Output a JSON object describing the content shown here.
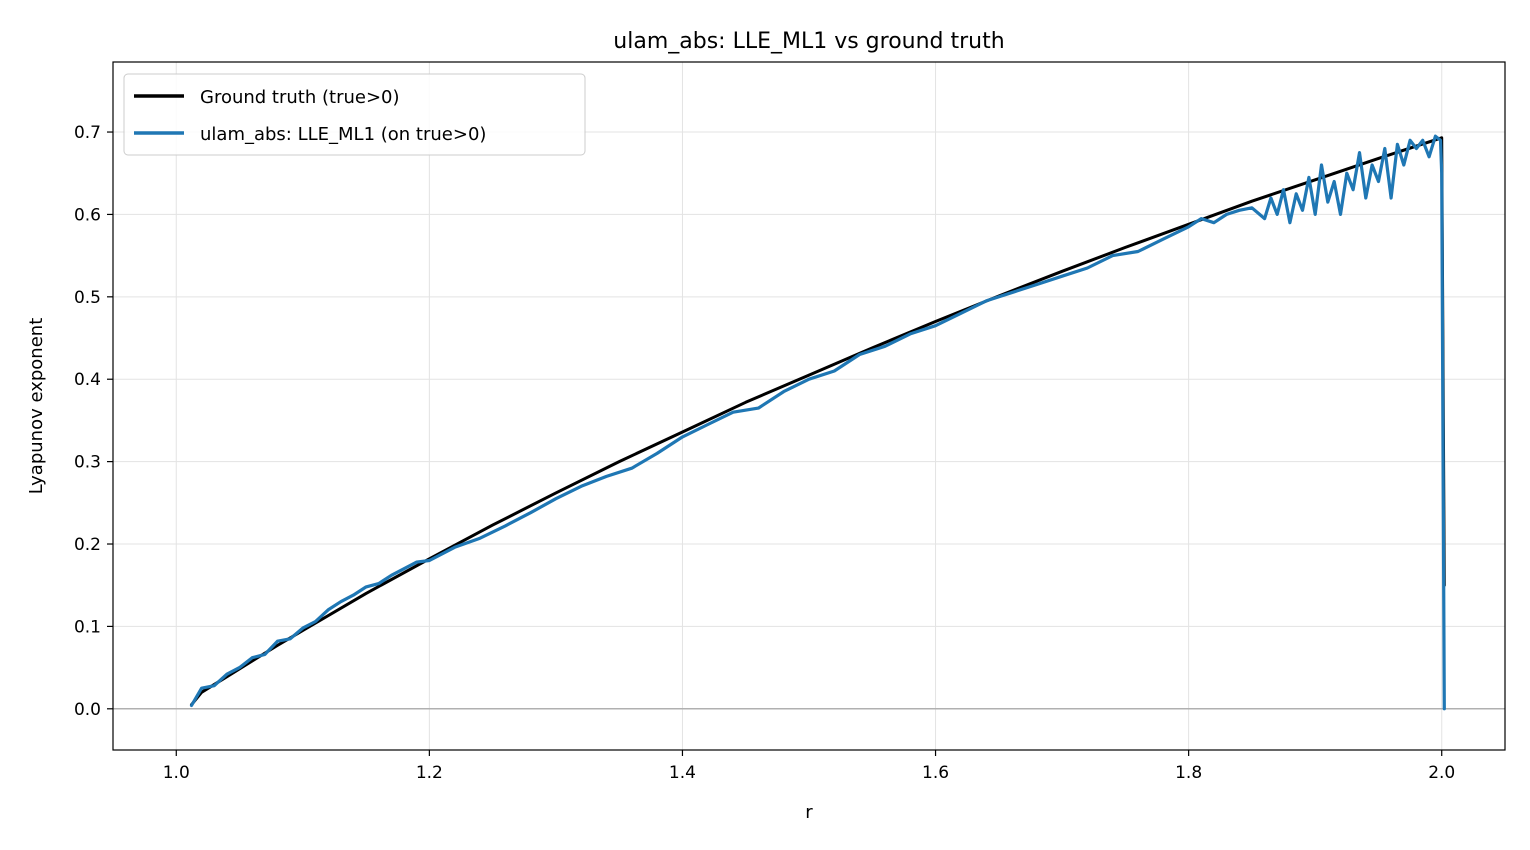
{
  "chart_data": {
    "type": "line",
    "title": "ulam_abs: LLE_ML1 vs ground truth",
    "xlabel": "r",
    "ylabel": "Lyapunov exponent",
    "xlim": [
      0.95,
      2.05
    ],
    "ylim": [
      -0.05,
      0.785
    ],
    "xticks": [
      1.0,
      1.2,
      1.4,
      1.6,
      1.8,
      2.0
    ],
    "xtick_labels": [
      "1.0",
      "1.2",
      "1.4",
      "1.6",
      "1.8",
      "2.0"
    ],
    "yticks": [
      0.0,
      0.1,
      0.2,
      0.3,
      0.4,
      0.5,
      0.6,
      0.7
    ],
    "ytick_labels": [
      "0.0",
      "0.1",
      "0.2",
      "0.3",
      "0.4",
      "0.5",
      "0.6",
      "0.7"
    ],
    "grid": true,
    "zero_line": true,
    "legend_position": "upper-left",
    "series": [
      {
        "name": "Ground truth (true>0)",
        "color": "#000000",
        "x": [
          1.012,
          1.02,
          1.04,
          1.06,
          1.08,
          1.1,
          1.15,
          1.2,
          1.25,
          1.3,
          1.35,
          1.4,
          1.45,
          1.5,
          1.55,
          1.6,
          1.65,
          1.7,
          1.75,
          1.8,
          1.85,
          1.9,
          1.95,
          2.0,
          2.002
        ],
        "y": [
          0.005,
          0.02,
          0.039,
          0.058,
          0.077,
          0.095,
          0.14,
          0.182,
          0.223,
          0.262,
          0.3,
          0.336,
          0.372,
          0.405,
          0.438,
          0.47,
          0.501,
          0.531,
          0.56,
          0.588,
          0.616,
          0.642,
          0.668,
          0.693,
          0.15
        ]
      },
      {
        "name": "ulam_abs: LLE_ML1 (on true>0)",
        "color": "#1f77b4",
        "x": [
          1.012,
          1.02,
          1.03,
          1.04,
          1.05,
          1.06,
          1.07,
          1.08,
          1.09,
          1.1,
          1.11,
          1.12,
          1.13,
          1.14,
          1.15,
          1.16,
          1.17,
          1.18,
          1.19,
          1.2,
          1.22,
          1.24,
          1.26,
          1.28,
          1.3,
          1.32,
          1.34,
          1.36,
          1.38,
          1.4,
          1.42,
          1.44,
          1.46,
          1.48,
          1.5,
          1.52,
          1.54,
          1.56,
          1.58,
          1.6,
          1.62,
          1.64,
          1.66,
          1.68,
          1.7,
          1.72,
          1.74,
          1.76,
          1.78,
          1.8,
          1.81,
          1.82,
          1.83,
          1.84,
          1.85,
          1.86,
          1.865,
          1.87,
          1.875,
          1.88,
          1.885,
          1.89,
          1.895,
          1.9,
          1.905,
          1.91,
          1.915,
          1.92,
          1.925,
          1.93,
          1.935,
          1.94,
          1.945,
          1.95,
          1.955,
          1.96,
          1.965,
          1.97,
          1.975,
          1.98,
          1.985,
          1.99,
          1.995,
          1.999,
          2.0,
          2.002
        ],
        "y": [
          0.004,
          0.025,
          0.028,
          0.042,
          0.05,
          0.062,
          0.066,
          0.082,
          0.085,
          0.098,
          0.106,
          0.12,
          0.13,
          0.138,
          0.148,
          0.152,
          0.162,
          0.17,
          0.178,
          0.18,
          0.196,
          0.207,
          0.222,
          0.238,
          0.255,
          0.27,
          0.282,
          0.292,
          0.31,
          0.33,
          0.345,
          0.36,
          0.365,
          0.385,
          0.4,
          0.41,
          0.43,
          0.44,
          0.455,
          0.465,
          0.48,
          0.495,
          0.505,
          0.515,
          0.525,
          0.535,
          0.55,
          0.555,
          0.57,
          0.585,
          0.595,
          0.59,
          0.6,
          0.605,
          0.608,
          0.595,
          0.62,
          0.6,
          0.63,
          0.59,
          0.625,
          0.605,
          0.645,
          0.6,
          0.66,
          0.615,
          0.64,
          0.6,
          0.65,
          0.63,
          0.675,
          0.62,
          0.66,
          0.64,
          0.68,
          0.62,
          0.685,
          0.66,
          0.69,
          0.68,
          0.69,
          0.67,
          0.695,
          0.69,
          0.65,
          0.0
        ]
      }
    ]
  }
}
